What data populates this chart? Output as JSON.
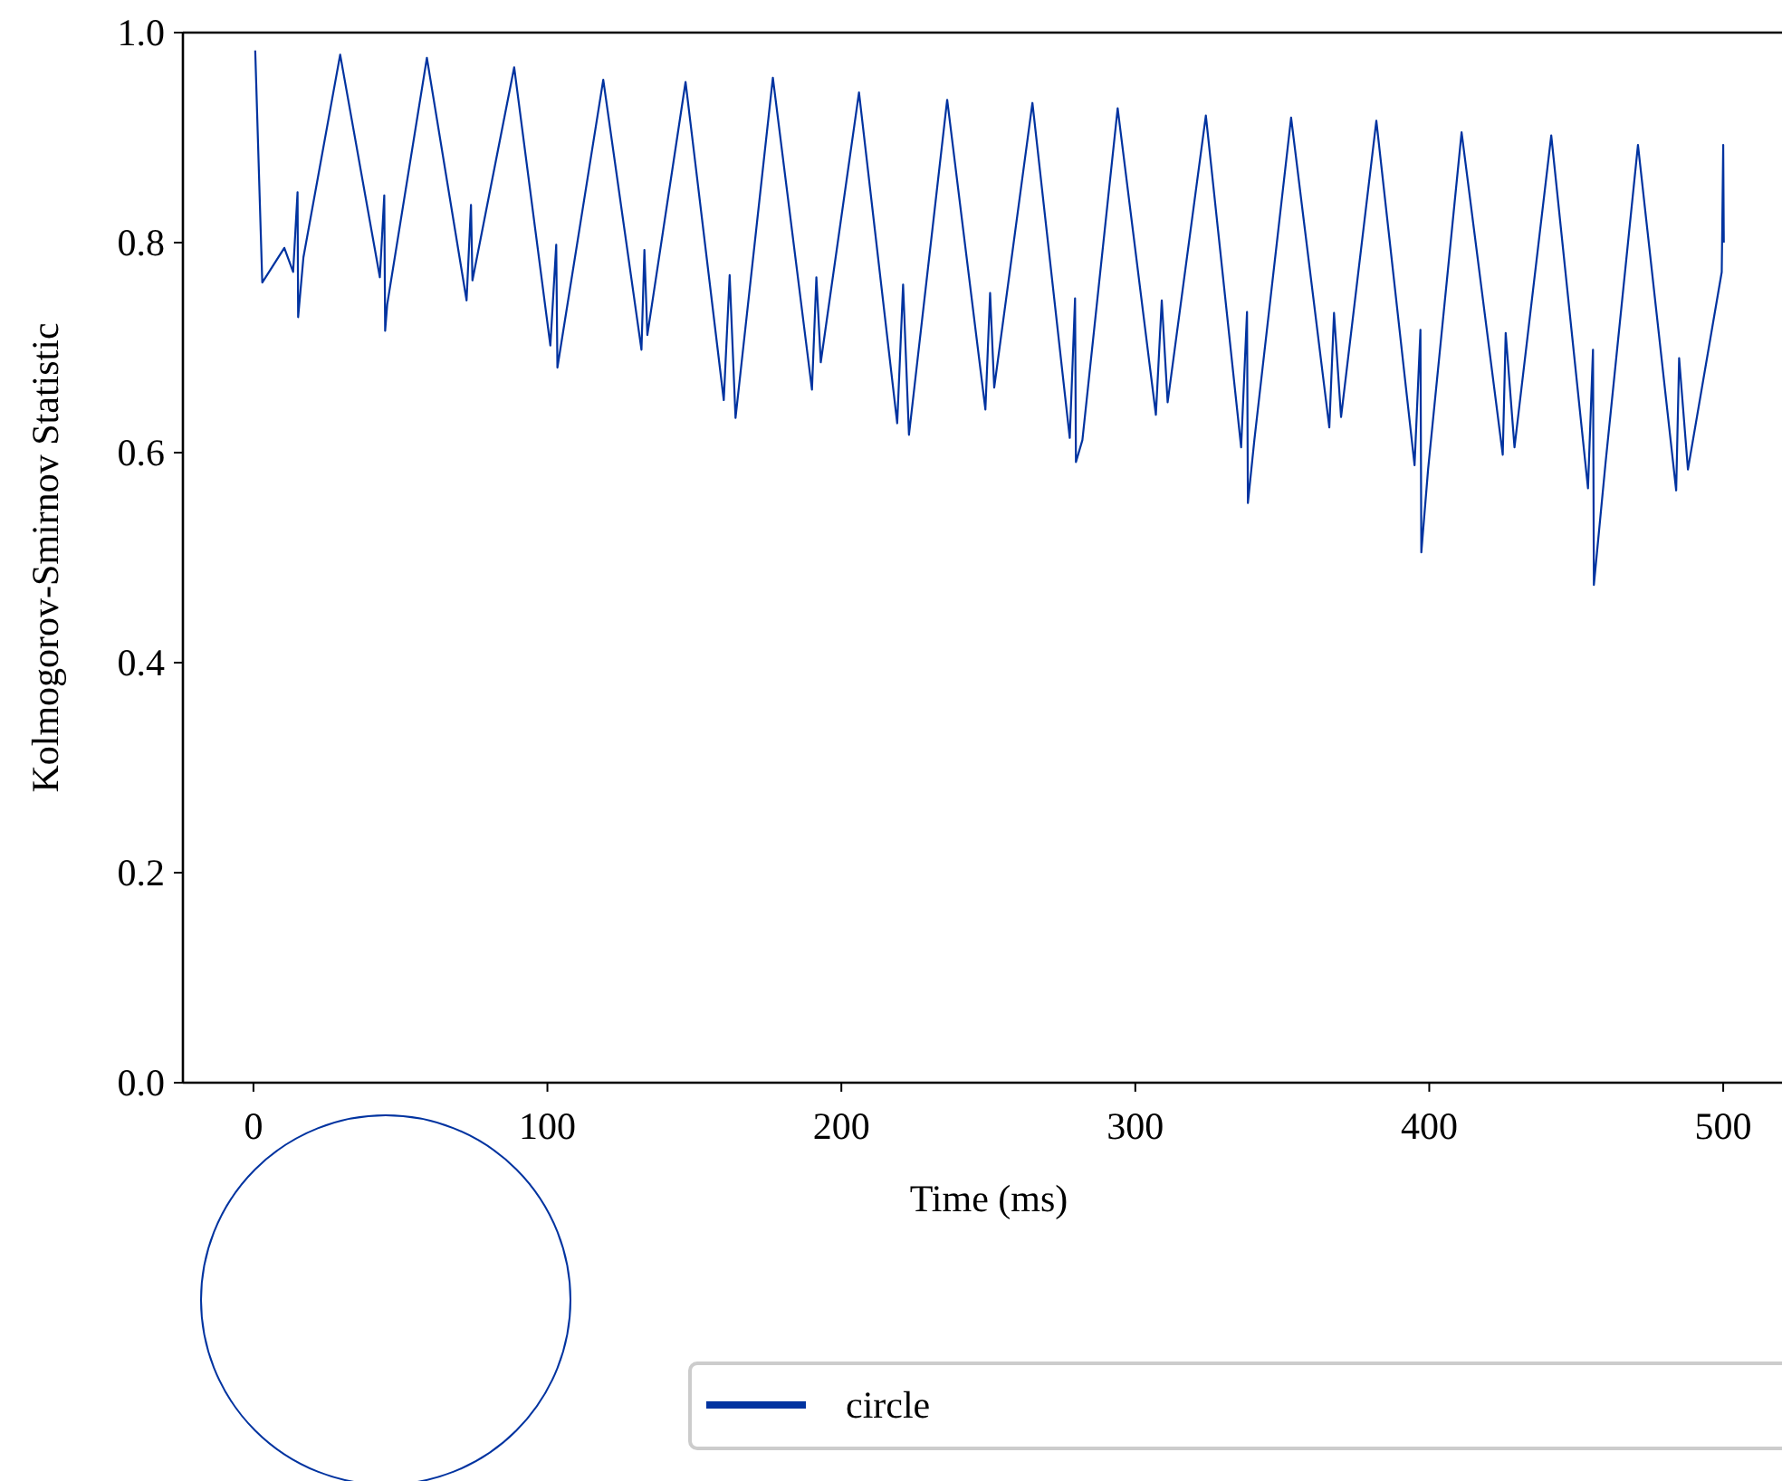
{
  "chart_data": {
    "type": "line",
    "xlabel": "Time (ms)",
    "ylabel": "Kolmogorov-Smirnov Statistic",
    "xlim": [
      -24,
      520
    ],
    "ylim": [
      0,
      1
    ],
    "xticks": [
      0,
      100,
      200,
      300,
      400,
      500
    ],
    "yticks": [
      {
        "value": 0,
        "label": "0.0"
      },
      {
        "value": 0.2,
        "label": "0.2"
      },
      {
        "value": 0.4,
        "label": "0.4"
      },
      {
        "value": 0.6,
        "label": "0.6"
      },
      {
        "value": 0.8,
        "label": "0.8"
      },
      {
        "value": 1,
        "label": "1.0"
      }
    ],
    "legend": "bottom",
    "grid": false,
    "line_style": "solid",
    "marker": "none",
    "series": [
      {
        "name": "circle",
        "color": "#0033a0",
        "x": [
          0.6,
          3,
          10.5,
          13.5,
          15,
          15.2,
          17,
          29.5,
          43,
          44.5,
          44.8,
          45.5,
          59,
          72.5,
          74,
          74.5,
          88.7,
          101,
          103,
          103.4,
          119,
          132,
          133,
          134,
          147,
          160,
          162,
          164,
          176.7,
          190,
          191.5,
          193,
          206,
          219,
          221,
          223,
          236,
          249,
          250.6,
          252,
          265,
          277.7,
          279.5,
          279.8,
          282,
          294,
          307,
          309,
          311,
          324,
          336,
          338,
          338.3,
          340.5,
          353,
          366,
          367.6,
          370,
          382,
          395,
          397,
          397.3,
          399.6,
          411,
          425,
          426,
          429,
          441.5,
          454,
          455.7,
          456,
          460,
          471,
          484,
          485,
          488,
          499.5,
          500,
          500.2
        ],
        "values": [
          0.983,
          0.762,
          0.795,
          0.772,
          0.848,
          0.729,
          0.786,
          0.979,
          0.767,
          0.845,
          0.716,
          0.741,
          0.976,
          0.745,
          0.836,
          0.764,
          0.967,
          0.702,
          0.798,
          0.681,
          0.955,
          0.698,
          0.793,
          0.712,
          0.953,
          0.65,
          0.769,
          0.633,
          0.957,
          0.66,
          0.767,
          0.686,
          0.943,
          0.628,
          0.76,
          0.617,
          0.936,
          0.641,
          0.752,
          0.662,
          0.933,
          0.614,
          0.747,
          0.591,
          0.612,
          0.928,
          0.636,
          0.745,
          0.648,
          0.921,
          0.605,
          0.734,
          0.552,
          0.612,
          0.919,
          0.624,
          0.733,
          0.634,
          0.916,
          0.588,
          0.717,
          0.505,
          0.584,
          0.905,
          0.598,
          0.714,
          0.605,
          0.902,
          0.566,
          0.698,
          0.474,
          0.591,
          0.893,
          0.564,
          0.69,
          0.584,
          0.772,
          0.893,
          0.8
        ]
      }
    ]
  }
}
